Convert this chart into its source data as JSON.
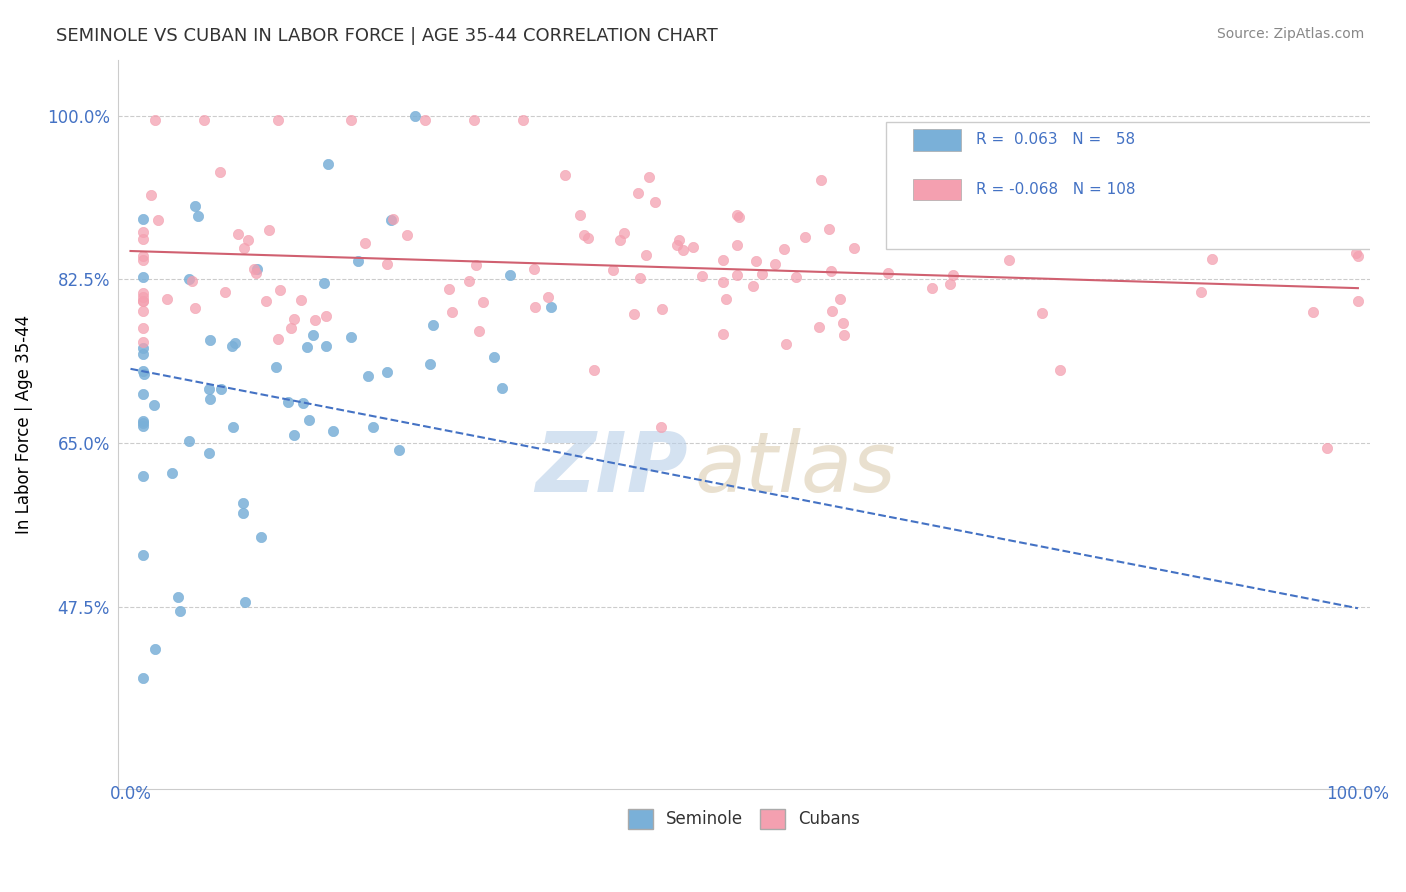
{
  "title": "SEMINOLE VS CUBAN IN LABOR FORCE | AGE 35-44 CORRELATION CHART",
  "source": "Source: ZipAtlas.com",
  "ylabel": "In Labor Force | Age 35-44",
  "seminole_color": "#7ab0d8",
  "cubans_color": "#f4a0b0",
  "seminole_trend_color": "#4472c4",
  "cubans_trend_color": "#d06070",
  "seminole_R": 0.063,
  "seminole_N": 58,
  "cubans_R": -0.068,
  "cubans_N": 108
}
